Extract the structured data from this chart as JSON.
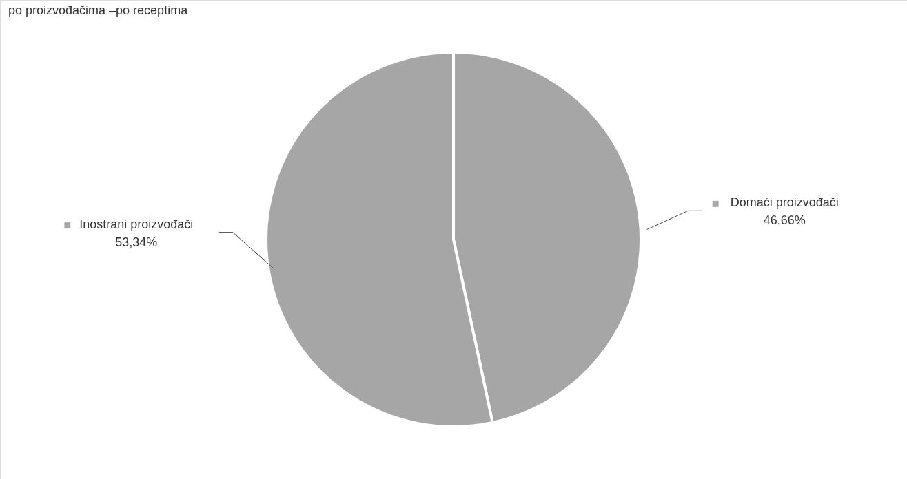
{
  "chart_data": {
    "type": "pie",
    "title": "po proizvođačima –po receptima",
    "categories": [
      "Domaći proizvođači",
      "Inostrani proizvođači"
    ],
    "values": [
      46.66,
      53.34
    ],
    "value_labels": [
      "46,66%",
      "53,34%"
    ],
    "colors": [
      "#a6a6a6",
      "#a6a6a6"
    ],
    "legend": "right"
  }
}
